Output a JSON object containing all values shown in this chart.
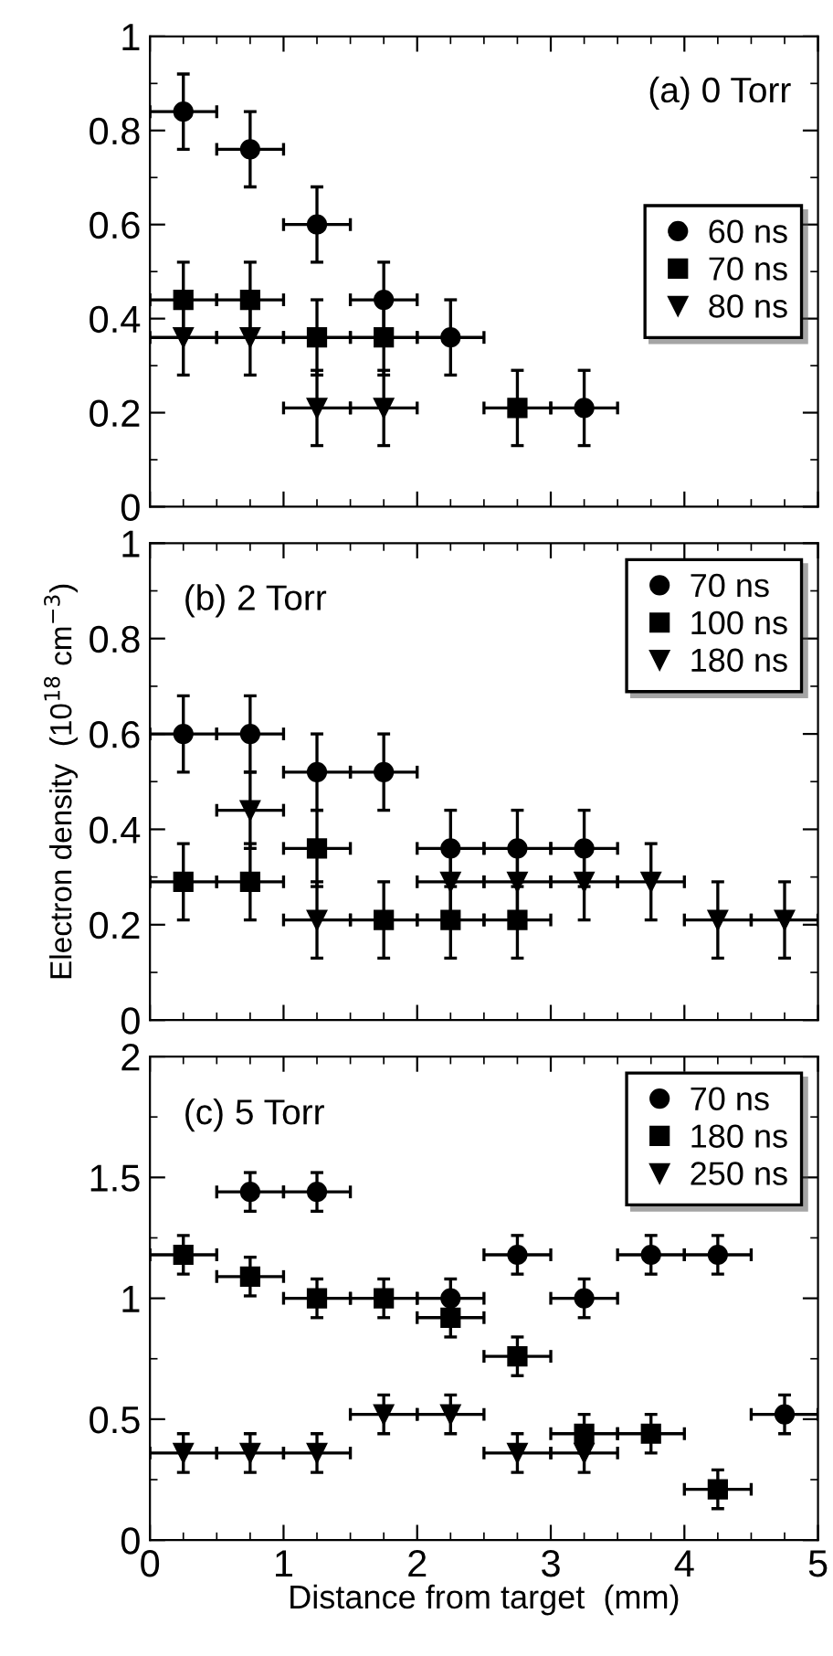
{
  "chart_data": [
    {
      "type": "scatter",
      "annotations": [
        "(a) 0 Torr"
      ],
      "xlim": [
        0,
        5
      ],
      "xticks": [
        0,
        1,
        2,
        3,
        4,
        5
      ],
      "ylim": [
        0,
        1
      ],
      "yticks": [
        0,
        0.2,
        0.4,
        0.6,
        0.8,
        1
      ],
      "tick_labels": "y",
      "legend": "right",
      "grid": false,
      "series": [
        {
          "name": "60 ns",
          "color": "#000000",
          "marker": "circle",
          "x": [
            0.25,
            0.75,
            1.25,
            1.75,
            2.25,
            3.25
          ],
          "values": [
            0.84,
            0.76,
            0.6,
            0.44,
            0.36,
            0.21
          ],
          "errors": [
            0.08,
            0.08,
            0.08,
            0.08,
            0.08,
            0.08
          ],
          "xerrors": [
            0.25,
            0.25,
            0.25,
            0.25,
            0.25,
            0.25
          ]
        },
        {
          "name": "70 ns",
          "color": "#000000",
          "marker": "square",
          "x": [
            0.25,
            0.75,
            1.25,
            1.75,
            2.75
          ],
          "values": [
            0.44,
            0.44,
            0.36,
            0.36,
            0.21
          ],
          "errors": [
            0.08,
            0.08,
            0.08,
            0.08,
            0.08
          ],
          "xerrors": [
            0.25,
            0.25,
            0.25,
            0.25,
            0.25
          ]
        },
        {
          "name": "80 ns",
          "color": "#000000",
          "marker": "triangle",
          "x": [
            0.25,
            0.75,
            1.25,
            1.75
          ],
          "values": [
            0.36,
            0.36,
            0.21,
            0.21
          ],
          "errors": [
            0.08,
            0.08,
            0.08,
            0.08
          ],
          "xerrors": [
            0.25,
            0.25,
            0.25,
            0.25
          ]
        }
      ]
    },
    {
      "type": "scatter",
      "annotations": [
        "(b) 2 Torr"
      ],
      "ylabel": "Electron density  (10$^{18}$ cm$^{−3}$)",
      "xlim": [
        0,
        5
      ],
      "xticks": [
        0,
        1,
        2,
        3,
        4,
        5
      ],
      "ylim": [
        0,
        1
      ],
      "yticks": [
        0,
        0.2,
        0.4,
        0.6,
        0.8,
        1
      ],
      "tick_labels": "y",
      "legend": "top right",
      "grid": false,
      "series": [
        {
          "name": "70 ns",
          "color": "#000000",
          "marker": "circle",
          "x": [
            0.25,
            0.75,
            1.25,
            1.75,
            2.25,
            2.75,
            3.25
          ],
          "values": [
            0.6,
            0.6,
            0.52,
            0.52,
            0.36,
            0.36,
            0.36
          ],
          "errors": [
            0.08,
            0.08,
            0.08,
            0.08,
            0.08,
            0.08,
            0.08
          ],
          "xerrors": [
            0.25,
            0.25,
            0.25,
            0.25,
            0.25,
            0.25,
            0.25
          ]
        },
        {
          "name": "100 ns",
          "color": "#000000",
          "marker": "square",
          "x": [
            0.25,
            0.75,
            1.25,
            1.75,
            2.25,
            2.75
          ],
          "values": [
            0.29,
            0.29,
            0.36,
            0.21,
            0.21,
            0.21
          ],
          "errors": [
            0.08,
            0.08,
            0.08,
            0.08,
            0.08,
            0.08
          ],
          "xerrors": [
            0.25,
            0.25,
            0.25,
            0.25,
            0.25,
            0.25
          ]
        },
        {
          "name": "180 ns",
          "color": "#000000",
          "marker": "triangle",
          "x": [
            0.75,
            1.25,
            2.25,
            2.75,
            3.25,
            3.75,
            4.25,
            4.75
          ],
          "values": [
            0.44,
            0.21,
            0.29,
            0.29,
            0.29,
            0.29,
            0.21,
            0.21
          ],
          "errors": [
            0.08,
            0.08,
            0.08,
            0.08,
            0.08,
            0.08,
            0.08,
            0.08
          ],
          "xerrors": [
            0.25,
            0.25,
            0.25,
            0.25,
            0.25,
            0.25,
            0.25,
            0.25
          ]
        }
      ]
    },
    {
      "type": "scatter",
      "annotations": [
        "(c) 5 Torr"
      ],
      "xlabel": "Distance from target  (mm)",
      "xlim": [
        0,
        5
      ],
      "xticks": [
        0,
        1,
        2,
        3,
        4,
        5
      ],
      "ylim": [
        0,
        2
      ],
      "yticks": [
        0,
        0.5,
        1,
        1.5,
        2
      ],
      "legend": "top right",
      "grid": false,
      "series": [
        {
          "name": "70 ns",
          "color": "#000000",
          "marker": "circle",
          "x": [
            0.75,
            1.25,
            2.25,
            2.75,
            3.25,
            3.75,
            4.25,
            4.75
          ],
          "values": [
            1.44,
            1.44,
            1.0,
            1.18,
            1.0,
            1.18,
            1.18,
            0.52
          ],
          "errors": [
            0.08,
            0.08,
            0.08,
            0.08,
            0.08,
            0.08,
            0.08,
            0.08
          ],
          "xerrors": [
            0.25,
            0.25,
            0.25,
            0.25,
            0.25,
            0.25,
            0.25,
            0.25
          ]
        },
        {
          "name": "180 ns",
          "color": "#000000",
          "marker": "square",
          "x": [
            0.25,
            0.75,
            1.25,
            1.75,
            2.25,
            2.75,
            3.25,
            3.75,
            4.25
          ],
          "values": [
            1.18,
            1.09,
            1.0,
            1.0,
            0.92,
            0.76,
            0.44,
            0.44,
            0.21
          ],
          "errors": [
            0.08,
            0.08,
            0.08,
            0.08,
            0.08,
            0.08,
            0.08,
            0.08,
            0.08
          ],
          "xerrors": [
            0.25,
            0.25,
            0.25,
            0.25,
            0.25,
            0.25,
            0.25,
            0.25,
            0.25
          ]
        },
        {
          "name": "250 ns",
          "color": "#000000",
          "marker": "triangle",
          "x": [
            0.25,
            0.75,
            1.25,
            1.75,
            2.25,
            2.75,
            3.25
          ],
          "values": [
            0.36,
            0.36,
            0.36,
            0.52,
            0.52,
            0.36,
            0.36
          ],
          "errors": [
            0.08,
            0.08,
            0.08,
            0.08,
            0.08,
            0.08,
            0.08
          ],
          "xerrors": [
            0.25,
            0.25,
            0.25,
            0.25,
            0.25,
            0.25,
            0.25
          ]
        }
      ]
    }
  ]
}
